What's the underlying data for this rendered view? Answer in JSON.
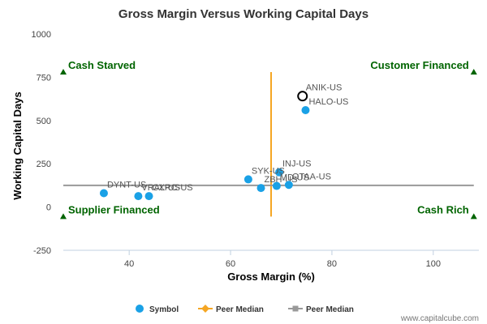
{
  "chart_data": {
    "type": "scatter",
    "title": "Gross Margin Versus Working Capital Days",
    "xlabel": "Gross Margin (%)",
    "ylabel": "Working Capital Days",
    "xlim": [
      27,
      109
    ],
    "ylim": [
      -250,
      1000
    ],
    "x_ticks": [
      40,
      60,
      80,
      100
    ],
    "y_ticks": [
      -250,
      0,
      250,
      500,
      750,
      1000
    ],
    "grid": false,
    "legend_position": "bottom",
    "series": [
      {
        "name": "Symbol",
        "color": "#1aa1e6",
        "points": [
          {
            "label": "ANIK-US",
            "x": 74.2,
            "y": 641,
            "highlight": true
          },
          {
            "label": "HALO-US",
            "x": 74.8,
            "y": 560
          },
          {
            "label": "INJ-US",
            "x": 69.6,
            "y": 201
          },
          {
            "label": "SYK-US",
            "x": 63.5,
            "y": 160
          },
          {
            "label": "ZBH-US",
            "x": 66.0,
            "y": 110
          },
          {
            "label": "MD-US",
            "x": 69.1,
            "y": 122
          },
          {
            "label": "OTAA-US",
            "x": 71.5,
            "y": 128
          },
          {
            "label": "DYNT-US",
            "x": 35.0,
            "y": 80
          },
          {
            "label": "VRAL-US",
            "x": 41.8,
            "y": 63
          },
          {
            "label": "CXRC-US",
            "x": 43.9,
            "y": 63
          }
        ]
      }
    ],
    "reference_lines": [
      {
        "name": "Peer Median",
        "axis": "x",
        "value": 68.0,
        "color": "#f5a623"
      },
      {
        "name": "Peer Median",
        "axis": "y",
        "value": 125,
        "color": "#999999"
      }
    ],
    "quadrant_labels": [
      {
        "text": "Cash Starved",
        "x": 27,
        "y": 780,
        "anchor": "start"
      },
      {
        "text": "Customer Financed",
        "x": 108,
        "y": 780,
        "anchor": "end"
      },
      {
        "text": "Supplier Financed",
        "x": 27,
        "y": -55,
        "anchor": "start"
      },
      {
        "text": "Cash Rich",
        "x": 108,
        "y": -55,
        "anchor": "end"
      }
    ],
    "marker_color": "#006400"
  },
  "legend": {
    "items": [
      {
        "label": "Symbol",
        "kind": "circle",
        "color": "#1aa1e6"
      },
      {
        "label": "Peer Median",
        "kind": "line-diamond",
        "color": "#f5a623"
      },
      {
        "label": "Peer Median",
        "kind": "line-square",
        "color": "#999999"
      }
    ]
  },
  "credit": "www.capitalcube.com"
}
